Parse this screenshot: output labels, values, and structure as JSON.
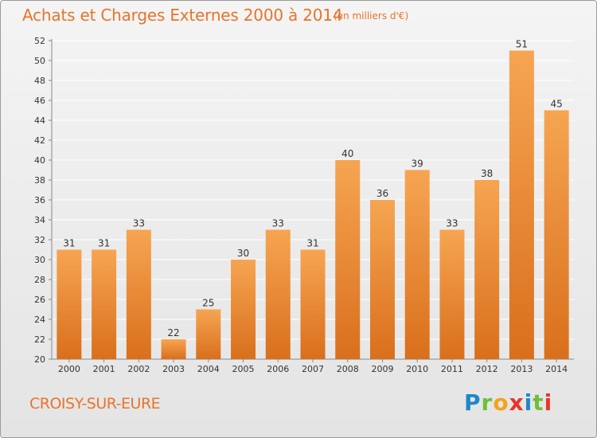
{
  "header": {
    "title": "Achats et Charges Externes 2000 à 2014",
    "subtitle": "(en milliers d'€)"
  },
  "footer": {
    "commune": "CROISY-SUR-EURE",
    "logo_letters": [
      "P",
      "r",
      "o",
      "x",
      "i",
      "t",
      "i"
    ]
  },
  "colors": {
    "accent": "#e8742a",
    "bar_top": "#f6a552",
    "bar_bottom": "#d96f1c",
    "grid": "#ffffff"
  },
  "chart_data": {
    "type": "bar",
    "title": "Achats et Charges Externes 2000 à 2014",
    "subtitle": "(en milliers d'€)",
    "xlabel": "",
    "ylabel": "",
    "categories": [
      "2000",
      "2001",
      "2002",
      "2003",
      "2004",
      "2005",
      "2006",
      "2007",
      "2008",
      "2009",
      "2010",
      "2011",
      "2012",
      "2013",
      "2014"
    ],
    "values": [
      31,
      31,
      33,
      22,
      25,
      30,
      33,
      31,
      40,
      36,
      39,
      33,
      38,
      51,
      45
    ],
    "ylim": [
      20,
      52
    ],
    "yticks": [
      20,
      22,
      24,
      26,
      28,
      30,
      32,
      34,
      36,
      38,
      40,
      42,
      44,
      46,
      48,
      50,
      52
    ],
    "grid": true,
    "legend": "none"
  }
}
